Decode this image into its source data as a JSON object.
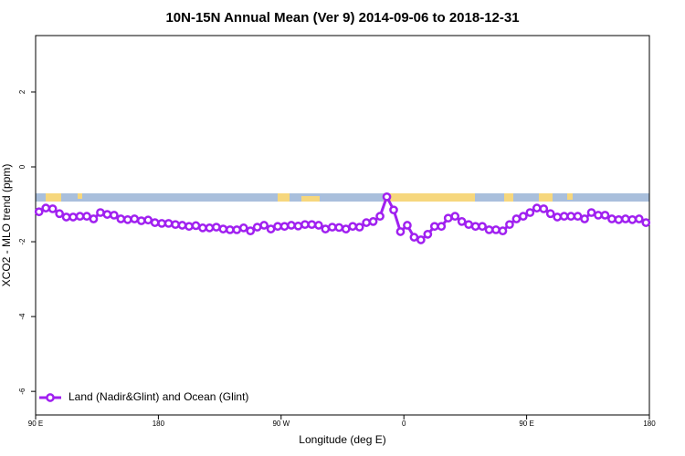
{
  "chart_data": {
    "type": "line",
    "title": "10N-15N Annual Mean (Ver 9)   2014-09-06 to 2018-12-31",
    "x_label": "Longitude (deg E)",
    "y_label": "XCO2 - MLO trend (ppm)",
    "x": [
      92.5,
      97.5,
      102.5,
      107.5,
      112.5,
      117.5,
      122.5,
      127.5,
      132.5,
      137.5,
      142.5,
      147.5,
      152.5,
      157.5,
      162.5,
      167.5,
      172.5,
      177.5,
      182.5,
      187.5,
      192.5,
      197.5,
      202.5,
      207.5,
      212.5,
      217.5,
      222.5,
      227.5,
      232.5,
      237.5,
      242.5,
      247.5,
      252.5,
      257.5,
      262.5,
      267.5,
      272.5,
      277.5,
      282.5,
      287.5,
      292.5,
      297.5,
      302.5,
      307.5,
      312.5,
      317.5,
      322.5,
      327.5,
      332.5,
      337.5,
      342.5,
      347.5,
      352.5,
      357.5,
      362.5,
      367.5,
      372.5,
      377.5,
      382.5,
      387.5,
      392.5,
      397.5,
      402.5,
      407.5,
      412.5,
      417.5,
      422.5,
      427.5,
      432.5,
      437.5,
      442.5,
      447.5,
      452.5,
      457.5,
      462.5,
      467.5,
      472.5,
      477.5,
      482.5,
      487.5,
      492.5,
      497.5,
      502.5,
      507.5,
      512.5,
      517.5,
      522.5,
      527.5,
      532.5,
      537.5
    ],
    "series": [
      {
        "name": "Land (Nadir&Glint) and Ocean (Glint)",
        "color": "#a020f0",
        "values": [
          -1.2,
          -1.1,
          -1.12,
          -1.25,
          -1.34,
          -1.34,
          -1.32,
          -1.32,
          -1.39,
          -1.22,
          -1.27,
          -1.29,
          -1.39,
          -1.41,
          -1.39,
          -1.44,
          -1.42,
          -1.49,
          -1.51,
          -1.51,
          -1.54,
          -1.56,
          -1.59,
          -1.57,
          -1.63,
          -1.63,
          -1.61,
          -1.66,
          -1.68,
          -1.68,
          -1.63,
          -1.71,
          -1.61,
          -1.56,
          -1.66,
          -1.59,
          -1.59,
          -1.56,
          -1.58,
          -1.54,
          -1.54,
          -1.56,
          -1.66,
          -1.61,
          -1.62,
          -1.66,
          -1.59,
          -1.61,
          -1.49,
          -1.46,
          -1.32,
          -0.8,
          -1.15,
          -1.73,
          -1.56,
          -1.88,
          -1.95,
          -1.8,
          -1.59,
          -1.59,
          -1.37,
          -1.32,
          -1.46,
          -1.54,
          -1.59,
          -1.59,
          -1.68,
          -1.68,
          -1.71,
          -1.54,
          -1.39,
          -1.32,
          -1.22,
          -1.1,
          -1.12,
          -1.25,
          -1.34,
          -1.32,
          -1.32,
          -1.32,
          -1.39,
          -1.22,
          -1.29,
          -1.29,
          -1.39,
          -1.41,
          -1.39,
          -1.41,
          -1.39,
          -1.49
        ]
      }
    ],
    "xlim": [
      90,
      540
    ],
    "xticks": [
      {
        "value": 90,
        "label": "90 E"
      },
      180,
      {
        "value": 270,
        "label": "90 W"
      },
      {
        "value": 360,
        "label": "0"
      },
      {
        "value": 450,
        "label": "90 E"
      },
      {
        "value": 540,
        "label": "180"
      }
    ],
    "ylim": [
      -6.63,
      3.51
    ],
    "yticks": [
      2,
      0,
      -2,
      -4,
      -6
    ],
    "legend": "bottomleft"
  }
}
